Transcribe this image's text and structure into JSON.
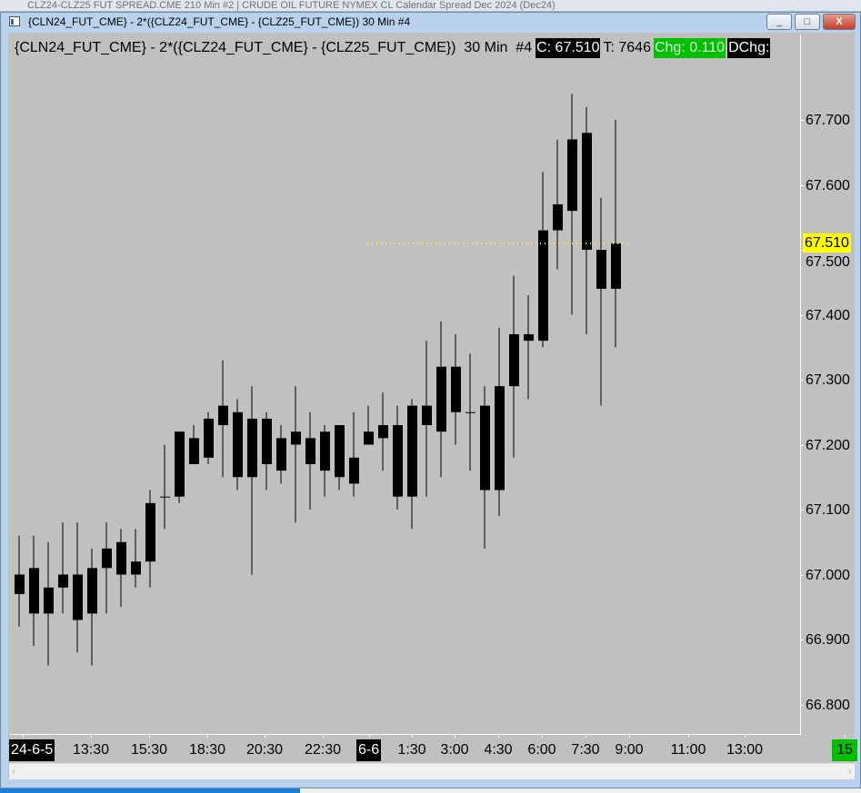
{
  "background_window": {
    "title": "CLZ24-CLZ25 FUT SPREAD.CME 210 Min #2 | CRUDE OIL FUTURE NYMEX CL Calendar Spread Dec 2024 (Dec24)"
  },
  "window": {
    "title": "{CLN24_FUT_CME} - 2*({CLZ24_FUT_CME} - {CLZ25_FUT_CME})  30 Min  #4",
    "minimize_label": "_",
    "maximize_label": "□",
    "close_label": "X"
  },
  "header": {
    "symbol": "{CLN24_FUT_CME} - 2*({CLZ24_FUT_CME} - {CLZ25_FUT_CME})  30 Min  #4",
    "close": "C: 67.510",
    "trades": "T: 7646",
    "change": "Chg: 0.110",
    "daily_change": "DChg:"
  },
  "colors": {
    "background": "#c0c0c0",
    "candle": "#000000",
    "last_price": "#ffff00",
    "change_positive": "#00c000"
  },
  "scroll": {
    "left": "‹",
    "right": "›"
  },
  "chart_data": {
    "type": "candlestick",
    "interval": "30 Min",
    "ylim": [
      66.75,
      67.79
    ],
    "last_price": 67.51,
    "last_price_label": "67.510",
    "y_ticks": [
      "67.700",
      "67.600",
      "67.500",
      "67.400",
      "67.300",
      "67.200",
      "67.100",
      "67.000",
      "66.900",
      "66.800"
    ],
    "y_tick_values": [
      67.7,
      67.6,
      67.5,
      67.4,
      67.3,
      67.2,
      67.1,
      67.0,
      66.9,
      66.8
    ],
    "x_labels": [
      {
        "text": "24-6-5",
        "style": "date"
      },
      {
        "text": "13:30"
      },
      {
        "text": "15:30"
      },
      {
        "text": "18:30"
      },
      {
        "text": "20:30"
      },
      {
        "text": "22:30"
      },
      {
        "text": "6-6",
        "style": "date"
      },
      {
        "text": "1:30"
      },
      {
        "text": "3:00"
      },
      {
        "text": "4:30"
      },
      {
        "text": "6:00"
      },
      {
        "text": "7:30"
      },
      {
        "text": "9:00"
      },
      {
        "text": "11:00"
      },
      {
        "text": "13:00"
      },
      {
        "text": "15",
        "style": "green"
      }
    ],
    "candles_hl_body": [
      [
        67.06,
        66.92,
        67.0,
        66.97
      ],
      [
        67.06,
        66.89,
        67.01,
        66.94
      ],
      [
        67.05,
        66.86,
        66.98,
        66.94
      ],
      [
        67.08,
        66.94,
        67.0,
        66.98
      ],
      [
        67.08,
        66.88,
        67.0,
        66.93
      ],
      [
        67.04,
        66.86,
        67.01,
        66.94
      ],
      [
        67.08,
        66.94,
        67.04,
        67.01
      ],
      [
        67.07,
        66.95,
        67.05,
        67.0
      ],
      [
        67.07,
        66.98,
        67.02,
        67.0
      ],
      [
        67.13,
        66.98,
        67.11,
        67.02
      ],
      [
        67.2,
        67.07,
        67.12,
        67.12
      ],
      [
        67.22,
        67.11,
        67.22,
        67.12
      ],
      [
        67.23,
        67.17,
        67.21,
        67.17
      ],
      [
        67.25,
        67.17,
        67.24,
        67.18
      ],
      [
        67.33,
        67.15,
        67.26,
        67.23
      ],
      [
        67.27,
        67.13,
        67.25,
        67.15
      ],
      [
        67.29,
        67.0,
        67.24,
        67.15
      ],
      [
        67.25,
        67.13,
        67.24,
        67.17
      ],
      [
        67.23,
        67.14,
        67.21,
        67.16
      ],
      [
        67.29,
        67.08,
        67.22,
        67.2
      ],
      [
        67.25,
        67.1,
        67.21,
        67.17
      ],
      [
        67.23,
        67.12,
        67.22,
        67.16
      ],
      [
        67.23,
        67.13,
        67.23,
        67.15
      ],
      [
        67.25,
        67.12,
        67.18,
        67.14
      ],
      [
        67.26,
        67.2,
        67.22,
        67.2
      ],
      [
        67.28,
        67.16,
        67.23,
        67.21
      ],
      [
        67.26,
        67.1,
        67.23,
        67.12
      ],
      [
        67.27,
        67.07,
        67.26,
        67.12
      ],
      [
        67.36,
        67.12,
        67.26,
        67.23
      ],
      [
        67.39,
        67.15,
        67.32,
        67.22
      ],
      [
        67.37,
        67.2,
        67.32,
        67.25
      ],
      [
        67.34,
        67.16,
        67.25,
        67.25
      ],
      [
        67.29,
        67.04,
        67.26,
        67.13
      ],
      [
        67.38,
        67.09,
        67.29,
        67.13
      ],
      [
        67.46,
        67.18,
        67.37,
        67.29
      ],
      [
        67.43,
        67.27,
        67.37,
        67.36
      ],
      [
        67.62,
        67.35,
        67.53,
        67.36
      ],
      [
        67.67,
        67.47,
        67.57,
        67.53
      ],
      [
        67.74,
        67.4,
        67.67,
        67.56
      ],
      [
        67.72,
        67.37,
        67.68,
        67.5
      ],
      [
        67.58,
        67.26,
        67.5,
        67.44
      ],
      [
        67.7,
        67.35,
        67.51,
        67.44
      ]
    ],
    "candles_format": [
      "high",
      "low",
      "body_high",
      "body_low"
    ]
  }
}
